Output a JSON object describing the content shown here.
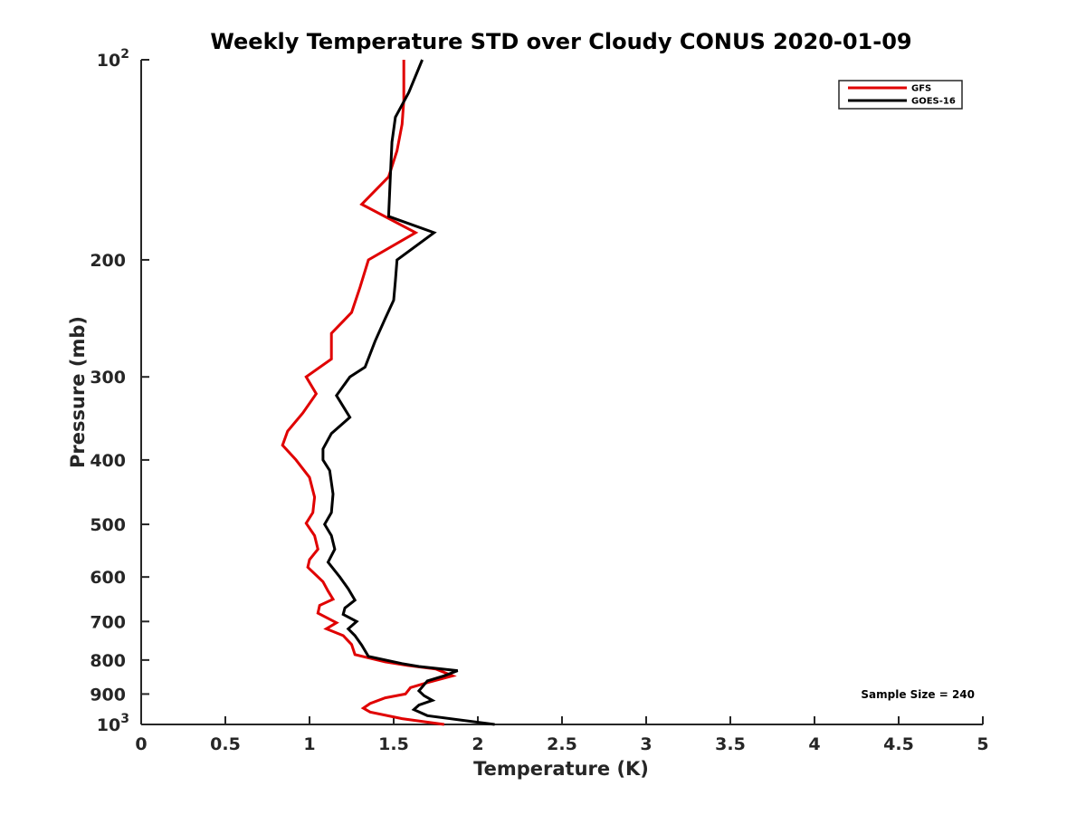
{
  "chart_data": {
    "type": "line",
    "title": "Weekly Temperature STD over Cloudy CONUS 2020-01-09",
    "xlabel": "Temperature (K)",
    "ylabel": "Pressure (mb)",
    "xlim": [
      0,
      5
    ],
    "ylim": [
      100,
      1000
    ],
    "y_scale": "log",
    "y_reversed": true,
    "grid": false,
    "legend_position": "top-right",
    "x_ticks": [
      {
        "value": 0,
        "label": "0"
      },
      {
        "value": 0.5,
        "label": "0.5"
      },
      {
        "value": 1,
        "label": "1"
      },
      {
        "value": 1.5,
        "label": "1.5"
      },
      {
        "value": 2,
        "label": "2"
      },
      {
        "value": 2.5,
        "label": "2.5"
      },
      {
        "value": 3,
        "label": "3"
      },
      {
        "value": 3.5,
        "label": "3.5"
      },
      {
        "value": 4,
        "label": "4"
      },
      {
        "value": 4.5,
        "label": "4.5"
      },
      {
        "value": 5,
        "label": "5"
      }
    ],
    "y_ticks": [
      {
        "value": 100,
        "label": "10",
        "sup": "2"
      },
      {
        "value": 200,
        "label": "200",
        "sup": ""
      },
      {
        "value": 300,
        "label": "300",
        "sup": ""
      },
      {
        "value": 400,
        "label": "400",
        "sup": ""
      },
      {
        "value": 500,
        "label": "500",
        "sup": ""
      },
      {
        "value": 600,
        "label": "600",
        "sup": ""
      },
      {
        "value": 700,
        "label": "700",
        "sup": ""
      },
      {
        "value": 800,
        "label": "800",
        "sup": ""
      },
      {
        "value": 900,
        "label": "900",
        "sup": ""
      },
      {
        "value": 1000,
        "label": "10",
        "sup": "3"
      }
    ],
    "annotation": "Sample Size = 240",
    "series": [
      {
        "name": "GFS",
        "color": "#e00000",
        "points": [
          [
            1.56,
            100
          ],
          [
            1.56,
            115
          ],
          [
            1.55,
            125
          ],
          [
            1.52,
            137
          ],
          [
            1.47,
            150
          ],
          [
            1.31,
            165
          ],
          [
            1.63,
            182
          ],
          [
            1.35,
            200
          ],
          [
            1.3,
            220
          ],
          [
            1.25,
            240
          ],
          [
            1.13,
            258
          ],
          [
            1.13,
            282
          ],
          [
            0.98,
            300
          ],
          [
            1.04,
            318
          ],
          [
            0.96,
            340
          ],
          [
            0.87,
            362
          ],
          [
            0.84,
            380
          ],
          [
            0.92,
            400
          ],
          [
            1.0,
            425
          ],
          [
            1.03,
            455
          ],
          [
            1.02,
            480
          ],
          [
            0.98,
            498
          ],
          [
            1.03,
            520
          ],
          [
            1.05,
            545
          ],
          [
            1.0,
            565
          ],
          [
            0.99,
            580
          ],
          [
            1.08,
            610
          ],
          [
            1.11,
            630
          ],
          [
            1.14,
            648
          ],
          [
            1.06,
            662
          ],
          [
            1.05,
            680
          ],
          [
            1.16,
            703
          ],
          [
            1.1,
            718
          ],
          [
            1.2,
            735
          ],
          [
            1.25,
            758
          ],
          [
            1.27,
            785
          ],
          [
            1.45,
            805
          ],
          [
            1.58,
            815
          ],
          [
            1.75,
            825
          ],
          [
            1.85,
            845
          ],
          [
            1.7,
            865
          ],
          [
            1.6,
            880
          ],
          [
            1.57,
            900
          ],
          [
            1.45,
            912
          ],
          [
            1.36,
            930
          ],
          [
            1.32,
            945
          ],
          [
            1.36,
            958
          ],
          [
            1.55,
            980
          ],
          [
            1.8,
            1000
          ]
        ]
      },
      {
        "name": "GOES-16",
        "color": "#000000",
        "points": [
          [
            1.67,
            100
          ],
          [
            1.59,
            112
          ],
          [
            1.51,
            122
          ],
          [
            1.49,
            133
          ],
          [
            1.48,
            150
          ],
          [
            1.47,
            172
          ],
          [
            1.74,
            182
          ],
          [
            1.52,
            200
          ],
          [
            1.51,
            215
          ],
          [
            1.5,
            230
          ],
          [
            1.45,
            245
          ],
          [
            1.39,
            265
          ],
          [
            1.33,
            290
          ],
          [
            1.24,
            300
          ],
          [
            1.16,
            320
          ],
          [
            1.24,
            345
          ],
          [
            1.13,
            365
          ],
          [
            1.08,
            385
          ],
          [
            1.08,
            400
          ],
          [
            1.12,
            415
          ],
          [
            1.14,
            450
          ],
          [
            1.13,
            480
          ],
          [
            1.09,
            500
          ],
          [
            1.13,
            520
          ],
          [
            1.15,
            545
          ],
          [
            1.11,
            570
          ],
          [
            1.18,
            600
          ],
          [
            1.23,
            625
          ],
          [
            1.27,
            650
          ],
          [
            1.21,
            668
          ],
          [
            1.2,
            683
          ],
          [
            1.28,
            700
          ],
          [
            1.23,
            718
          ],
          [
            1.27,
            735
          ],
          [
            1.31,
            760
          ],
          [
            1.35,
            790
          ],
          [
            1.55,
            810
          ],
          [
            1.65,
            818
          ],
          [
            1.88,
            830
          ],
          [
            1.8,
            845
          ],
          [
            1.7,
            860
          ],
          [
            1.68,
            872
          ],
          [
            1.65,
            890
          ],
          [
            1.68,
            905
          ],
          [
            1.73,
            920
          ],
          [
            1.65,
            935
          ],
          [
            1.62,
            950
          ],
          [
            1.7,
            970
          ],
          [
            2.1,
            1000
          ]
        ]
      }
    ]
  }
}
